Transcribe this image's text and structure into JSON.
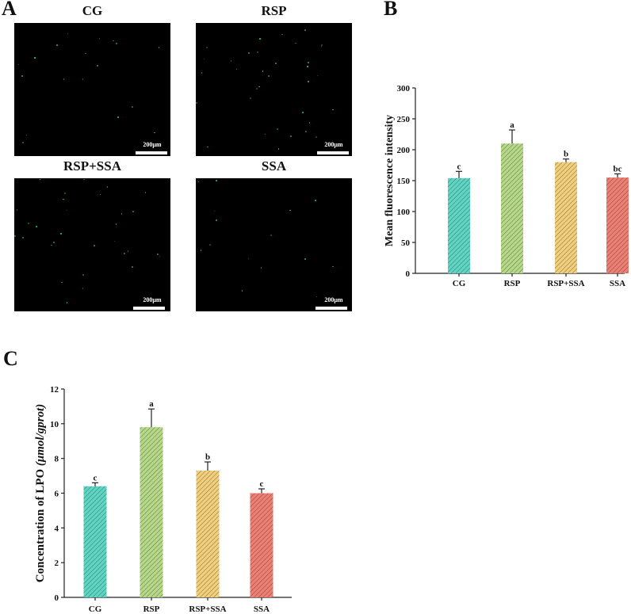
{
  "panels": {
    "A": {
      "letter": "A"
    },
    "B": {
      "letter": "B"
    },
    "C": {
      "letter": "C"
    }
  },
  "micrographs": [
    {
      "title": "CG",
      "scale_label": "200μm"
    },
    {
      "title": "RSP",
      "scale_label": "200μm"
    },
    {
      "title": "RSP+SSA",
      "scale_label": "200μm"
    },
    {
      "title": "SSA",
      "scale_label": "200μm"
    }
  ],
  "colors": {
    "CG": "#5ED6C4",
    "RSP": "#B5D987",
    "RSP+SSA": "#F2CF7A",
    "SSA": "#EE7F72"
  },
  "chart_data": [
    {
      "id": "B",
      "type": "bar",
      "title": "",
      "xlabel": "",
      "ylabel": "Mean fluorescence intensity",
      "categories": [
        "CG",
        "RSP",
        "RSP+SSA",
        "SSA"
      ],
      "values": [
        154,
        210,
        180,
        155
      ],
      "errors": [
        11,
        22,
        5,
        6
      ],
      "significance": [
        "c",
        "a",
        "b",
        "bc"
      ],
      "ylim": [
        0,
        300
      ],
      "yticks": [
        0,
        50,
        100,
        150,
        200,
        250,
        300
      ],
      "grid": false,
      "legend": "none"
    },
    {
      "id": "C",
      "type": "bar",
      "title": "",
      "xlabel": "",
      "ylabel": "Concentration of LPO (μmol/gprot)",
      "ylabel_main": "Concentration of LPO",
      "ylabel_unit": "(μmol/gprot)",
      "categories": [
        "CG",
        "RSP",
        "RSP+SSA",
        "SSA"
      ],
      "values": [
        6.4,
        9.8,
        7.3,
        6.0
      ],
      "errors": [
        0.2,
        1.05,
        0.5,
        0.25
      ],
      "significance": [
        "c",
        "a",
        "b",
        "c"
      ],
      "ylim": [
        0,
        12
      ],
      "yticks": [
        0,
        2,
        4,
        6,
        8,
        10,
        12
      ],
      "grid": false,
      "legend": "none"
    }
  ]
}
